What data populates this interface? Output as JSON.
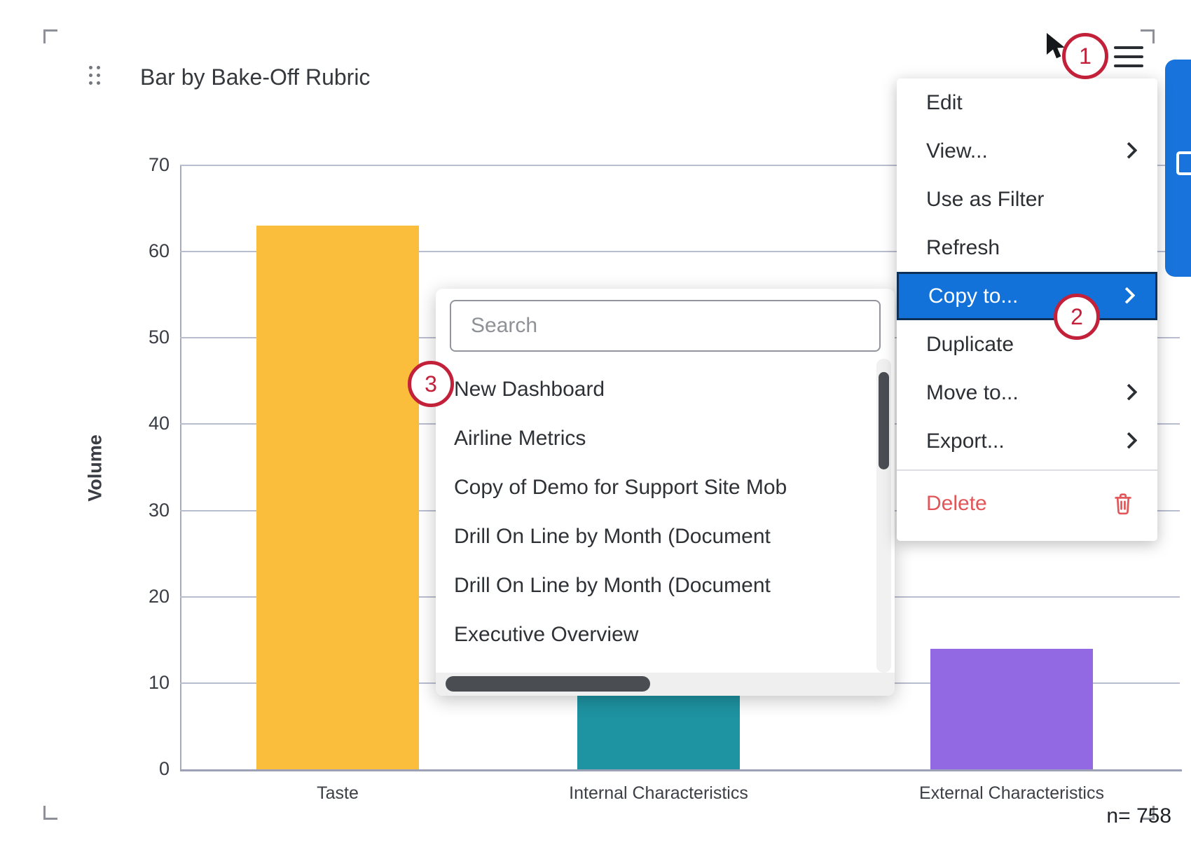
{
  "widget": {
    "title": "Bar by Bake-Off Rubric",
    "n_label": "n= 758"
  },
  "chart_data": {
    "type": "bar",
    "title": "Bar by Bake-Off Rubric",
    "categories": [
      "Taste",
      "Internal Characteristics",
      "External Characteristics"
    ],
    "values": [
      63,
      55,
      14
    ],
    "series_colors": [
      "#FBBD3C",
      "#1E93A1",
      "#9269E2"
    ],
    "xlabel": "",
    "ylabel": "Volume",
    "ylim": [
      0,
      70
    ],
    "yticks": [
      0,
      10,
      20,
      30,
      40,
      50,
      60,
      70
    ],
    "grid": true,
    "legend": false,
    "sample_size_label": "n= 758"
  },
  "context_menu": {
    "items": [
      {
        "label": "Edit",
        "has_submenu": false,
        "highlighted": false
      },
      {
        "label": "View...",
        "has_submenu": true,
        "highlighted": false
      },
      {
        "label": "Use as Filter",
        "has_submenu": false,
        "highlighted": false
      },
      {
        "label": "Refresh",
        "has_submenu": false,
        "highlighted": false
      },
      {
        "label": "Copy to...",
        "has_submenu": true,
        "highlighted": true
      },
      {
        "label": "Duplicate",
        "has_submenu": false,
        "highlighted": false
      },
      {
        "label": "Move to...",
        "has_submenu": true,
        "highlighted": false
      },
      {
        "label": "Export...",
        "has_submenu": true,
        "highlighted": false
      }
    ],
    "delete_label": "Delete"
  },
  "copy_to_submenu": {
    "search_placeholder": "Search",
    "items": [
      "New Dashboard",
      "Airline Metrics",
      "Copy of Demo for Support Site Mob",
      "Drill On Line by Month (Document",
      "Drill On Line by Month (Document",
      "Executive Overview"
    ]
  },
  "annotations": {
    "step1": "1",
    "step2": "2",
    "step3": "3"
  },
  "colors": {
    "menu_highlight": "#1272DA",
    "menu_highlight_border": "#0D3059",
    "delete_red": "#E25659",
    "annotation_red": "#C3203A",
    "adjacent_widget_blue": "#1874DC",
    "bar_yellow": "#FBBD3C",
    "bar_teal": "#1E93A1",
    "bar_purple": "#9269E2"
  }
}
